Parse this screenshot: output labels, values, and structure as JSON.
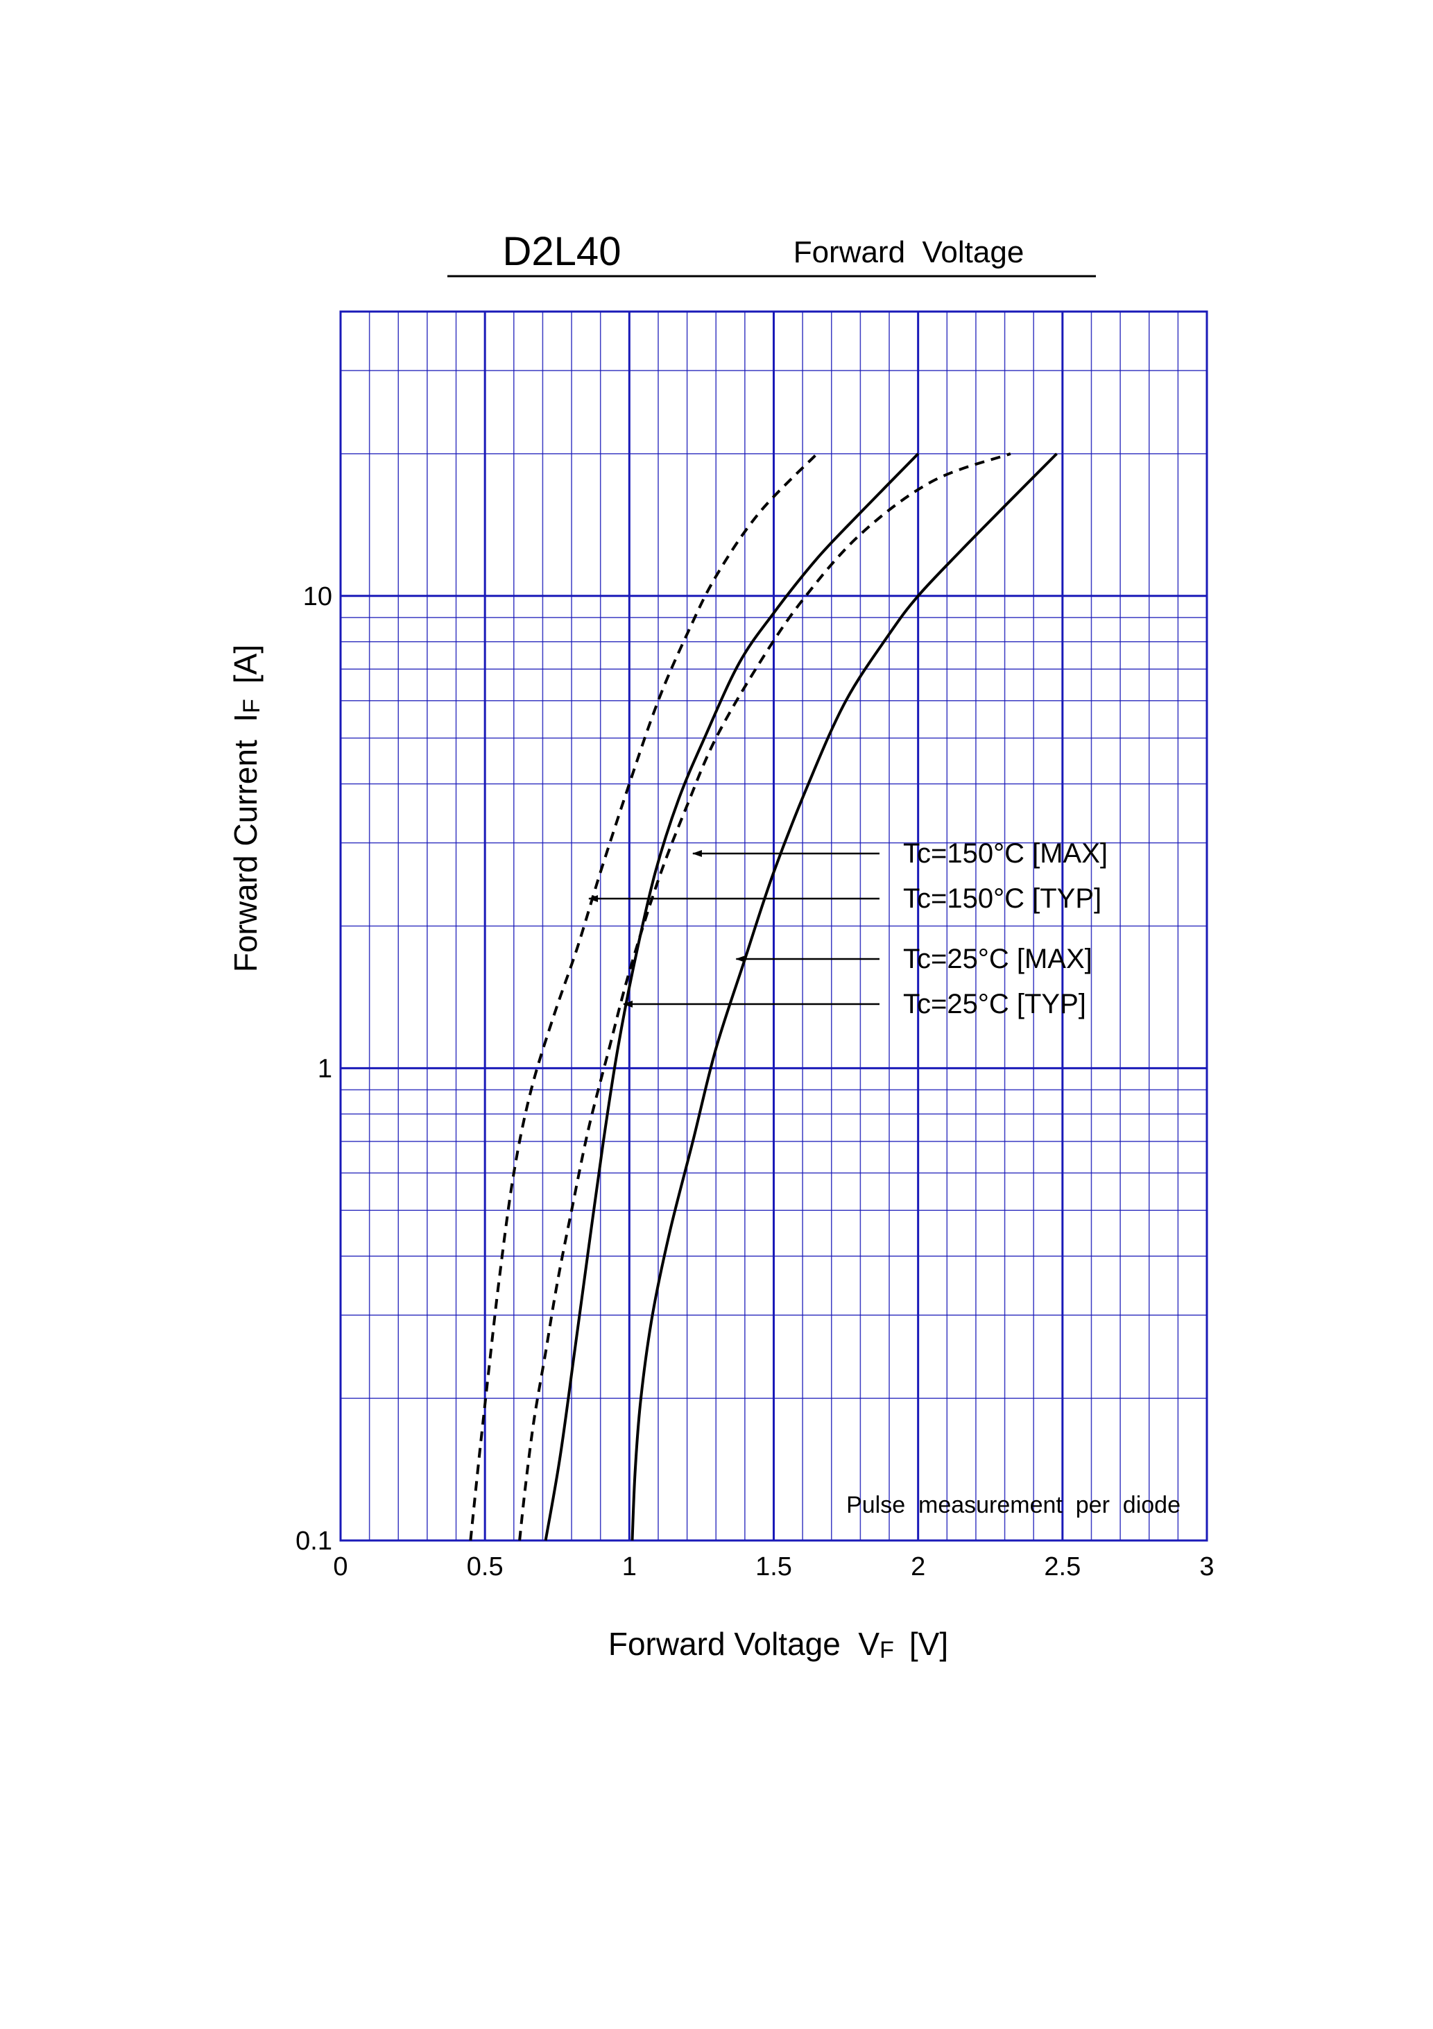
{
  "header": {
    "part_number": "D2L40",
    "subtitle": "Forward  Voltage"
  },
  "chart_data": {
    "type": "line",
    "xlabel": "Forward Voltage  V",
    "xlabel_sub": "F",
    "xlabel_unit": "[V]",
    "ylabel": "Forward Current  I",
    "ylabel_sub": "F",
    "ylabel_unit": "[A]",
    "x_scale": "linear",
    "y_scale": "log",
    "xlim": [
      0,
      3
    ],
    "ylim": [
      0.1,
      40
    ],
    "x_ticks": [
      0,
      0.5,
      1,
      1.5,
      2,
      2.5,
      3
    ],
    "x_tick_labels": [
      "0",
      "0.5",
      "1",
      "1.5",
      "2",
      "2.5",
      "3"
    ],
    "y_ticks": [
      0.1,
      1,
      10
    ],
    "y_tick_labels": [
      "0.1",
      "1",
      "10"
    ],
    "grid": true,
    "grid_color": "#1a1ab8",
    "line_color": "#000000",
    "annotation_note": "Pulse  measurement  per  diode",
    "series": [
      {
        "name": "Tc=150°C [MAX]",
        "style": "dashed",
        "points": [
          [
            0.62,
            0.1
          ],
          [
            0.64,
            0.13
          ],
          [
            0.67,
            0.18
          ],
          [
            0.71,
            0.25
          ],
          [
            0.75,
            0.35
          ],
          [
            0.8,
            0.5
          ],
          [
            0.86,
            0.75
          ],
          [
            0.93,
            1.1
          ],
          [
            1.0,
            1.6
          ],
          [
            1.1,
            2.5
          ],
          [
            1.2,
            3.6
          ],
          [
            1.3,
            5.0
          ],
          [
            1.45,
            7.2
          ],
          [
            1.6,
            9.8
          ],
          [
            1.8,
            13.5
          ],
          [
            2.05,
            17.5
          ],
          [
            2.32,
            20.0
          ]
        ],
        "arrow_at": [
          1.22,
          3.0
        ]
      },
      {
        "name": "Tc=150°C [TYP]",
        "style": "dashed",
        "points": [
          [
            0.45,
            0.1
          ],
          [
            0.48,
            0.15
          ],
          [
            0.51,
            0.22
          ],
          [
            0.55,
            0.36
          ],
          [
            0.6,
            0.6
          ],
          [
            0.66,
            0.9
          ],
          [
            0.74,
            1.3
          ],
          [
            0.82,
            1.8
          ],
          [
            0.9,
            2.6
          ],
          [
            1.0,
            4.0
          ],
          [
            1.1,
            6.0
          ],
          [
            1.2,
            8.3
          ],
          [
            1.3,
            11.0
          ],
          [
            1.45,
            15.0
          ],
          [
            1.65,
            20.0
          ]
        ],
        "arrow_at": [
          0.86,
          2.4
        ]
      },
      {
        "name": "Tc=25°C [MAX]",
        "style": "solid",
        "points": [
          [
            1.01,
            0.1
          ],
          [
            1.02,
            0.14
          ],
          [
            1.04,
            0.2
          ],
          [
            1.08,
            0.3
          ],
          [
            1.14,
            0.45
          ],
          [
            1.22,
            0.7
          ],
          [
            1.3,
            1.1
          ],
          [
            1.4,
            1.7
          ],
          [
            1.5,
            2.6
          ],
          [
            1.62,
            4.0
          ],
          [
            1.75,
            6.0
          ],
          [
            1.9,
            8.3
          ],
          [
            2.0,
            10.0
          ],
          [
            2.15,
            12.5
          ],
          [
            2.3,
            15.5
          ],
          [
            2.48,
            20.0
          ]
        ],
        "arrow_at": [
          1.37,
          1.7
        ]
      },
      {
        "name": "Tc=25°C [TYP]",
        "style": "solid",
        "points": [
          [
            0.71,
            0.1
          ],
          [
            0.76,
            0.15
          ],
          [
            0.81,
            0.25
          ],
          [
            0.86,
            0.42
          ],
          [
            0.91,
            0.7
          ],
          [
            0.96,
            1.1
          ],
          [
            1.02,
            1.7
          ],
          [
            1.09,
            2.6
          ],
          [
            1.17,
            3.7
          ],
          [
            1.26,
            5.0
          ],
          [
            1.38,
            7.2
          ],
          [
            1.5,
            9.2
          ],
          [
            1.65,
            12.0
          ],
          [
            1.8,
            15.0
          ],
          [
            2.0,
            20.0
          ]
        ],
        "arrow_at": [
          0.98,
          1.35
        ]
      }
    ]
  }
}
